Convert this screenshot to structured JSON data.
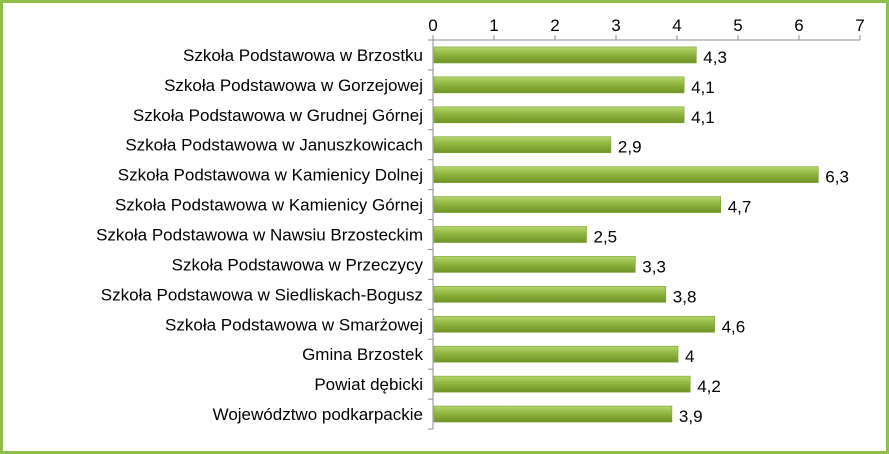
{
  "chart_data": {
    "type": "bar",
    "orientation": "horizontal",
    "categories": [
      "Szkoła Podstawowa w Brzostku",
      "Szkoła Podstawowa w Gorzejowej",
      "Szkoła Podstawowa w Grudnej Górnej",
      "Szkoła Podstawowa w Januszkowicach",
      "Szkoła Podstawowa w Kamienicy Dolnej",
      "Szkoła Podstawowa w Kamienicy Górnej",
      "Szkoła Podstawowa w Nawsiu Brzosteckim",
      "Szkoła Podstawowa w Przeczycy",
      "Szkoła Podstawowa w Siedliskach-Bogusz",
      "Szkoła Podstawowa w Smarżowej",
      "Gmina Brzostek",
      "Powiat dębicki",
      "Województwo podkarpackie"
    ],
    "values": [
      4.3,
      4.1,
      4.1,
      2.9,
      6.3,
      4.7,
      2.5,
      3.3,
      3.8,
      4.6,
      4.0,
      4.2,
      3.9
    ],
    "value_labels": [
      "4,3",
      "4,1",
      "4,1",
      "2,9",
      "6,3",
      "4,7",
      "2,5",
      "3,3",
      "3,8",
      "4,6",
      "4",
      "4,2",
      "3,9"
    ],
    "x_ticks": [
      "0",
      "1",
      "2",
      "3",
      "4",
      "5",
      "6",
      "7"
    ],
    "xlim": [
      0,
      7
    ],
    "axis_position": "top",
    "grid": false,
    "legend": "none",
    "bar_color": "#8cb33c",
    "border_color": "#8fbf4a"
  }
}
